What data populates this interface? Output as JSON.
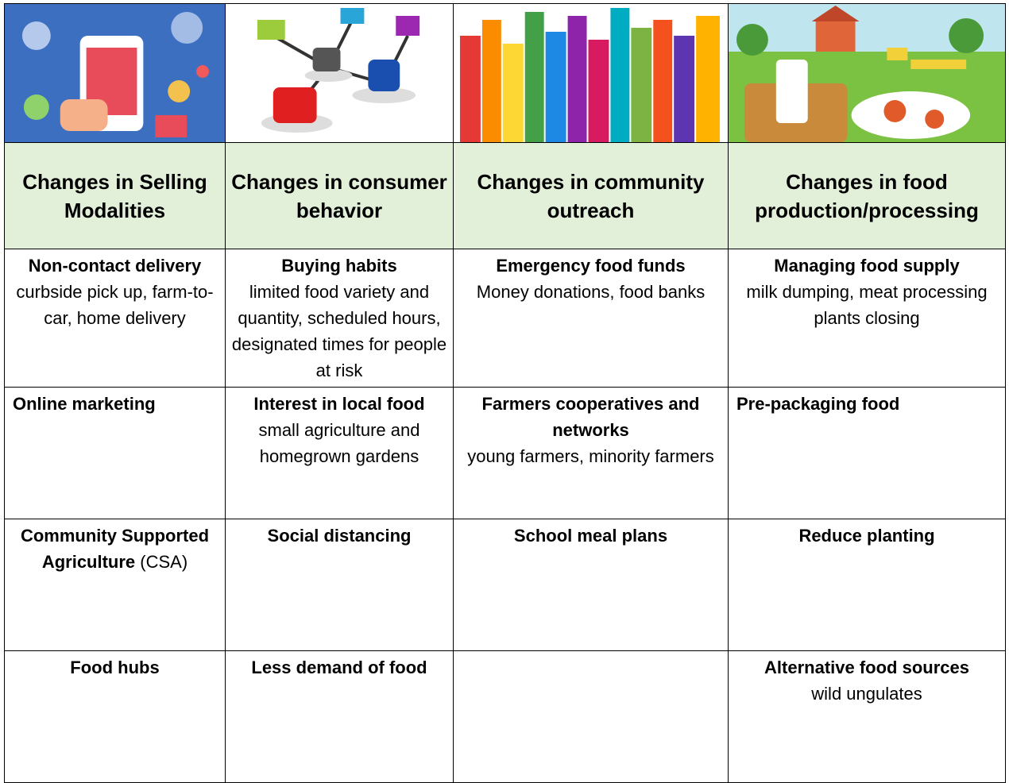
{
  "table": {
    "header": [
      "Changes in Selling Modalities",
      "Changes in consumer behavior",
      "Changes in community outreach",
      "Changes in food production/processing"
    ],
    "rows": [
      [
        {
          "title": "Non-contact delivery",
          "detail": "curbside pick up, farm-to-car, home delivery"
        },
        {
          "title": "Buying habits",
          "detail": "limited food variety and quantity, scheduled hours, designated times for people at risk"
        },
        {
          "title": "Emergency food funds",
          "detail": "Money donations, food banks"
        },
        {
          "title": "Managing food supply",
          "detail": "milk dumping, meat processing plants closing"
        }
      ],
      [
        {
          "title": "Online marketing"
        },
        {
          "title": "Interest in local food",
          "detail": "small agriculture and homegrown gardens"
        },
        {
          "title": "Farmers cooperatives and networks",
          "detail": "young farmers, minority farmers"
        },
        {
          "title": "Pre-packaging food"
        }
      ],
      [
        {
          "title": "Community Supported Agriculture",
          "suffix": "(CSA)"
        },
        {
          "title": "Social distancing"
        },
        {
          "title": "School meal plans"
        },
        {
          "title": "Reduce planting"
        }
      ],
      [
        {
          "title": "Food hubs"
        },
        {
          "title": "Less demand of food"
        },
        null,
        {
          "title": "Alternative food sources",
          "detail": "wild ungulates"
        }
      ]
    ]
  }
}
